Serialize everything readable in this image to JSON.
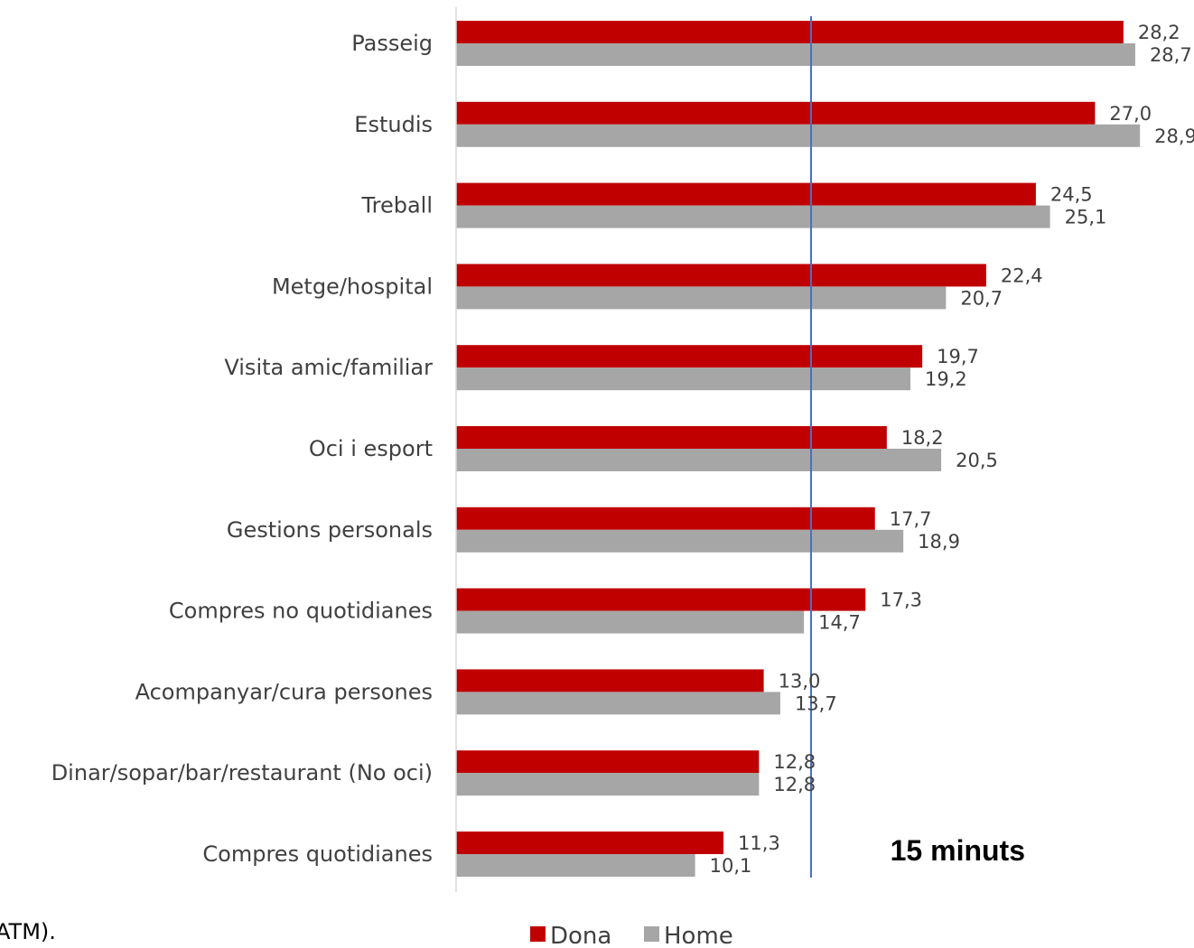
{
  "chart_data": {
    "type": "bar",
    "orientation": "horizontal",
    "categories": [
      "Passeig",
      "Estudis",
      "Treball",
      "Metge/hospital",
      "Visita amic/familiar",
      "Oci i esport",
      "Gestions personals",
      "Compres no quotidianes",
      "Acompanyar/cura persones",
      "Dinar/sopar/bar/restaurant (No oci)",
      "Compres quotidianes"
    ],
    "series": [
      {
        "name": "Dona",
        "color": "#c00000",
        "values": [
          28.2,
          27.0,
          24.5,
          22.4,
          19.7,
          18.2,
          17.7,
          17.3,
          13.0,
          12.8,
          11.3
        ],
        "labels": [
          "28,2",
          "27,0",
          "24,5",
          "22,4",
          "19,7",
          "18,2",
          "17,7",
          "17,3",
          "13,0",
          "12,8",
          "11,3"
        ]
      },
      {
        "name": "Home",
        "color": "#a6a6a6",
        "values": [
          28.7,
          28.9,
          25.1,
          20.7,
          19.2,
          20.5,
          18.9,
          14.7,
          13.7,
          12.8,
          10.1
        ],
        "labels": [
          "28,7",
          "28,9",
          "25,1",
          "20,7",
          "19,2",
          "20,5",
          "18,9",
          "14,7",
          "13,7",
          "12,8",
          "10,1"
        ]
      }
    ],
    "reference_line": {
      "value": 15,
      "label": "15 minuts",
      "color": "#4472c4"
    },
    "xlim": [
      0,
      29
    ],
    "grid": false,
    "legend_position": "bottom",
    "clipped_text": "ATM)."
  }
}
